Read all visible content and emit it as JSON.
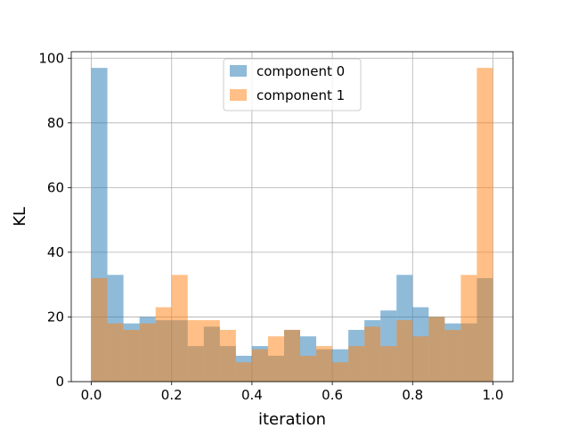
{
  "chart_data": {
    "type": "bar",
    "xlabel": "iteration",
    "ylabel": "KL",
    "xlim": [
      -0.05,
      1.05
    ],
    "ylim": [
      0,
      102
    ],
    "xticks": [
      0.0,
      0.2,
      0.4,
      0.6,
      0.8,
      1.0
    ],
    "xtick_labels": [
      "0.0",
      "0.2",
      "0.4",
      "0.6",
      "0.8",
      "1.0"
    ],
    "yticks": [
      0,
      20,
      40,
      60,
      80,
      100
    ],
    "ytick_labels": [
      "0",
      "20",
      "40",
      "60",
      "80",
      "100"
    ],
    "grid": true,
    "legend_position": "top-center",
    "bin_width": 0.04,
    "bin_starts": [
      0.0,
      0.04,
      0.08,
      0.12,
      0.16,
      0.2,
      0.24,
      0.28,
      0.32,
      0.36,
      0.4,
      0.44,
      0.48,
      0.52,
      0.56,
      0.6,
      0.64,
      0.68,
      0.72,
      0.76,
      0.8,
      0.84,
      0.88,
      0.92,
      0.96
    ],
    "series": [
      {
        "name": "component 0",
        "color": "#1f77b4",
        "values": [
          97,
          33,
          18,
          20,
          19,
          19,
          11,
          17,
          11,
          8,
          11,
          8,
          16,
          14,
          10,
          10,
          16,
          19,
          22,
          33,
          23,
          20,
          18,
          18,
          32
        ]
      },
      {
        "name": "component 1",
        "color": "#ff7f0e",
        "values": [
          32,
          18,
          16,
          18,
          23,
          33,
          19,
          19,
          16,
          6,
          10,
          14,
          16,
          8,
          11,
          6,
          11,
          17,
          11,
          19,
          14,
          20,
          16,
          33,
          97
        ]
      }
    ]
  }
}
